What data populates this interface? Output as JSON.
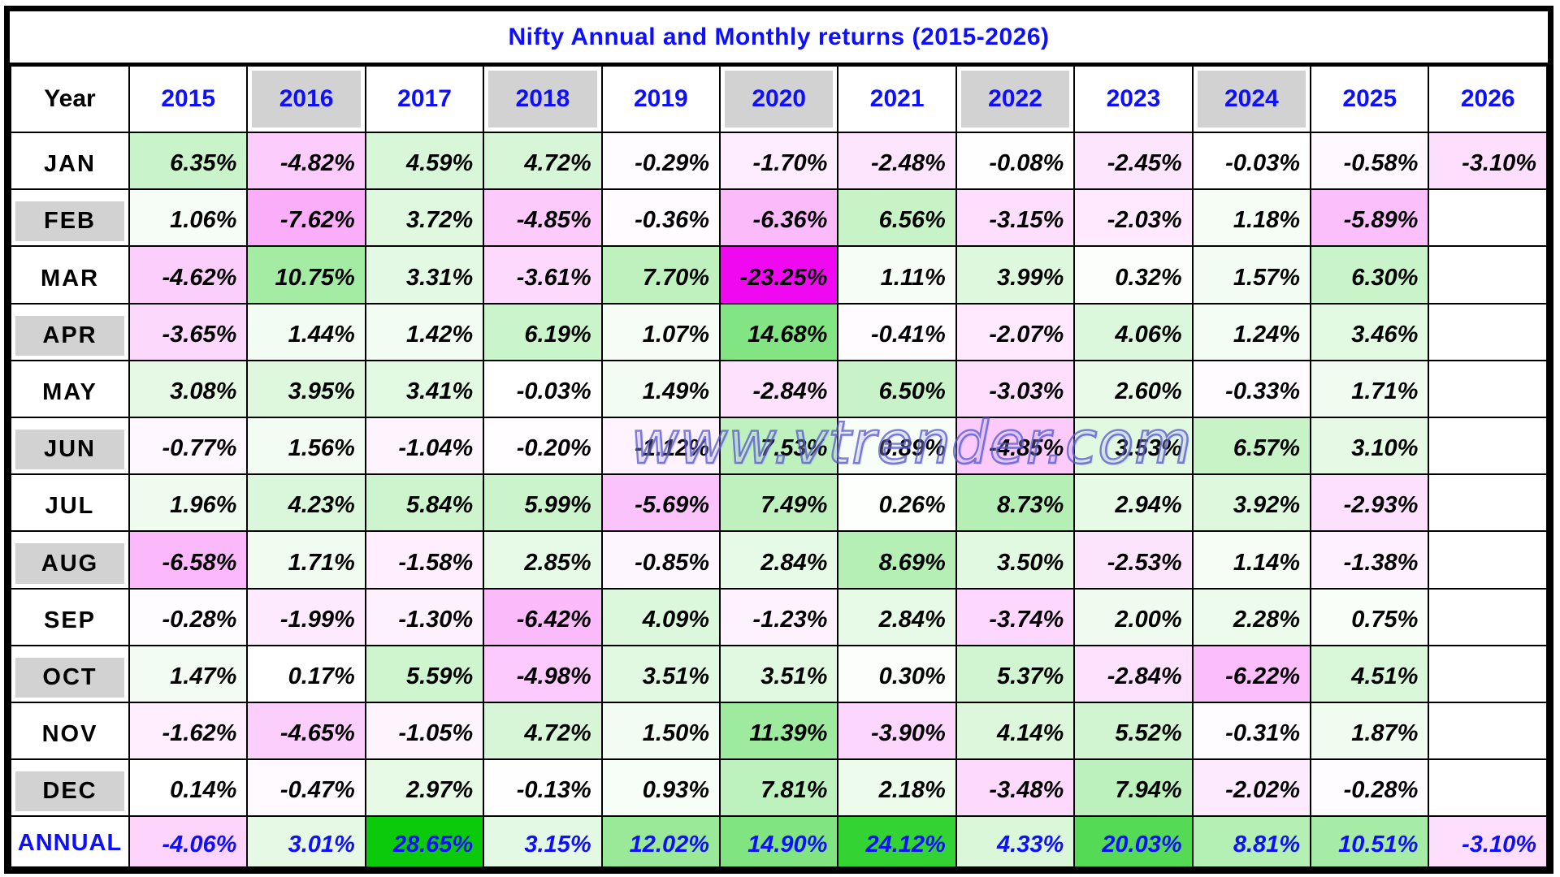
{
  "title": "Nifty Annual and Monthly returns (2015-2026)",
  "watermark": "www.vtrender.com",
  "colors": {
    "title_blue": "#0f0fff",
    "header_gray": "#d2d2d2",
    "grid_black": "#000000",
    "max_positive_green": "#00c800",
    "max_negative_magenta": "#f000f0"
  },
  "table": {
    "corner_label": "Year",
    "years": [
      "2015",
      "2016",
      "2017",
      "2018",
      "2019",
      "2020",
      "2021",
      "2022",
      "2023",
      "2024",
      "2025",
      "2026"
    ],
    "rows": [
      {
        "label": "JAN",
        "values": [
          "6.35%",
          "-4.82%",
          "4.59%",
          "4.72%",
          "-0.29%",
          "-1.70%",
          "-2.48%",
          "-0.08%",
          "-2.45%",
          "-0.03%",
          "-0.58%",
          "-3.10%"
        ]
      },
      {
        "label": "FEB",
        "values": [
          "1.06%",
          "-7.62%",
          "3.72%",
          "-4.85%",
          "-0.36%",
          "-6.36%",
          "6.56%",
          "-3.15%",
          "-2.03%",
          "1.18%",
          "-5.89%",
          ""
        ]
      },
      {
        "label": "MAR",
        "values": [
          "-4.62%",
          "10.75%",
          "3.31%",
          "-3.61%",
          "7.70%",
          "-23.25%",
          "1.11%",
          "3.99%",
          "0.32%",
          "1.57%",
          "6.30%",
          ""
        ]
      },
      {
        "label": "APR",
        "values": [
          "-3.65%",
          "1.44%",
          "1.42%",
          "6.19%",
          "1.07%",
          "14.68%",
          "-0.41%",
          "-2.07%",
          "4.06%",
          "1.24%",
          "3.46%",
          ""
        ]
      },
      {
        "label": "MAY",
        "values": [
          "3.08%",
          "3.95%",
          "3.41%",
          "-0.03%",
          "1.49%",
          "-2.84%",
          "6.50%",
          "-3.03%",
          "2.60%",
          "-0.33%",
          "1.71%",
          ""
        ]
      },
      {
        "label": "JUN",
        "values": [
          "-0.77%",
          "1.56%",
          "-1.04%",
          "-0.20%",
          "-1.12%",
          "7.53%",
          "0.89%",
          "-4.85%",
          "3.53%",
          "6.57%",
          "3.10%",
          ""
        ]
      },
      {
        "label": "JUL",
        "values": [
          "1.96%",
          "4.23%",
          "5.84%",
          "5.99%",
          "-5.69%",
          "7.49%",
          "0.26%",
          "8.73%",
          "2.94%",
          "3.92%",
          "-2.93%",
          ""
        ]
      },
      {
        "label": "AUG",
        "values": [
          "-6.58%",
          "1.71%",
          "-1.58%",
          "2.85%",
          "-0.85%",
          "2.84%",
          "8.69%",
          "3.50%",
          "-2.53%",
          "1.14%",
          "-1.38%",
          ""
        ]
      },
      {
        "label": "SEP",
        "values": [
          "-0.28%",
          "-1.99%",
          "-1.30%",
          "-6.42%",
          "4.09%",
          "-1.23%",
          "2.84%",
          "-3.74%",
          "2.00%",
          "2.28%",
          "0.75%",
          ""
        ]
      },
      {
        "label": "OCT",
        "values": [
          "1.47%",
          "0.17%",
          "5.59%",
          "-4.98%",
          "3.51%",
          "3.51%",
          "0.30%",
          "5.37%",
          "-2.84%",
          "-6.22%",
          "4.51%",
          ""
        ]
      },
      {
        "label": "NOV",
        "values": [
          "-1.62%",
          "-4.65%",
          "-1.05%",
          "4.72%",
          "1.50%",
          "11.39%",
          "-3.90%",
          "4.14%",
          "5.52%",
          "-0.31%",
          "1.87%",
          ""
        ]
      },
      {
        "label": "DEC",
        "values": [
          "0.14%",
          "-0.47%",
          "2.97%",
          "-0.13%",
          "0.93%",
          "7.81%",
          "2.18%",
          "-3.48%",
          "7.94%",
          "-2.02%",
          "-0.28%",
          ""
        ]
      },
      {
        "label": "ANNUAL",
        "annual": true,
        "values": [
          "-4.06%",
          "3.01%",
          "28.65%",
          "3.15%",
          "12.02%",
          "14.90%",
          "24.12%",
          "4.33%",
          "20.03%",
          "8.81%",
          "10.51%",
          "-3.10%"
        ]
      }
    ]
  },
  "chart_data": {
    "type": "heatmap",
    "title": "Nifty Annual and Monthly returns (2015-2026)",
    "columns": [
      "2015",
      "2016",
      "2017",
      "2018",
      "2019",
      "2020",
      "2021",
      "2022",
      "2023",
      "2024",
      "2025",
      "2026"
    ],
    "rows": [
      "JAN",
      "FEB",
      "MAR",
      "APR",
      "MAY",
      "JUN",
      "JUL",
      "AUG",
      "SEP",
      "OCT",
      "NOV",
      "DEC",
      "ANNUAL"
    ],
    "values_pct": [
      [
        6.35,
        -4.82,
        4.59,
        4.72,
        -0.29,
        -1.7,
        -2.48,
        -0.08,
        -2.45,
        -0.03,
        -0.58,
        -3.1
      ],
      [
        1.06,
        -7.62,
        3.72,
        -4.85,
        -0.36,
        -6.36,
        6.56,
        -3.15,
        -2.03,
        1.18,
        -5.89,
        null
      ],
      [
        -4.62,
        10.75,
        3.31,
        -3.61,
        7.7,
        -23.25,
        1.11,
        3.99,
        0.32,
        1.57,
        6.3,
        null
      ],
      [
        -3.65,
        1.44,
        1.42,
        6.19,
        1.07,
        14.68,
        -0.41,
        -2.07,
        4.06,
        1.24,
        3.46,
        null
      ],
      [
        3.08,
        3.95,
        3.41,
        -0.03,
        1.49,
        -2.84,
        6.5,
        -3.03,
        2.6,
        -0.33,
        1.71,
        null
      ],
      [
        -0.77,
        1.56,
        -1.04,
        -0.2,
        -1.12,
        7.53,
        0.89,
        -4.85,
        3.53,
        6.57,
        3.1,
        null
      ],
      [
        1.96,
        4.23,
        5.84,
        5.99,
        -5.69,
        7.49,
        0.26,
        8.73,
        2.94,
        3.92,
        -2.93,
        null
      ],
      [
        -6.58,
        1.71,
        -1.58,
        2.85,
        -0.85,
        2.84,
        8.69,
        3.5,
        -2.53,
        1.14,
        -1.38,
        null
      ],
      [
        -0.28,
        -1.99,
        -1.3,
        -6.42,
        4.09,
        -1.23,
        2.84,
        -3.74,
        2.0,
        2.28,
        0.75,
        null
      ],
      [
        1.47,
        0.17,
        5.59,
        -4.98,
        3.51,
        3.51,
        0.3,
        5.37,
        -2.84,
        -6.22,
        4.51,
        null
      ],
      [
        -1.62,
        -4.65,
        -1.05,
        4.72,
        1.5,
        11.39,
        -3.9,
        4.14,
        5.52,
        -0.31,
        1.87,
        null
      ],
      [
        0.14,
        -0.47,
        2.97,
        -0.13,
        0.93,
        7.81,
        2.18,
        -3.48,
        7.94,
        -2.02,
        -0.28,
        null
      ],
      [
        -4.06,
        3.01,
        28.65,
        3.15,
        12.02,
        14.9,
        24.12,
        4.33,
        20.03,
        8.81,
        10.51,
        -3.1
      ]
    ],
    "color_scale": "white-to-green for gains, white-to-magenta for losses",
    "legend": "none",
    "grid": true
  }
}
